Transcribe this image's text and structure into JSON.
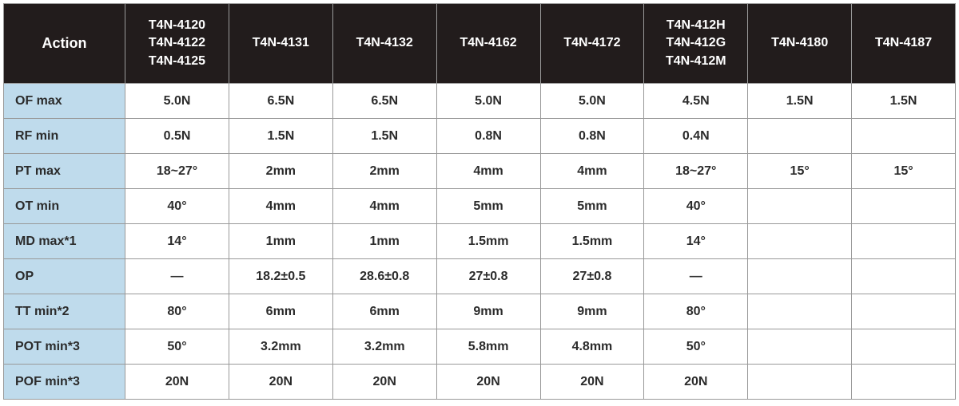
{
  "table": {
    "type": "table",
    "background_color": "#ffffff",
    "header_bg": "#221c1c",
    "header_color": "#ffffff",
    "rowlabel_bg": "#bfdbec",
    "border_color": "#999999",
    "text_color": "#2b2b2b",
    "action_label": "Action",
    "model_headers": [
      "T4N-4120\nT4N-4122\nT4N-4125",
      "T4N-4131",
      "T4N-4132",
      "T4N-4162",
      "T4N-4172",
      "T4N-412H\nT4N-412G\nT4N-412M",
      "T4N-4180",
      "T4N-4187"
    ],
    "rows": [
      {
        "label": "OF max",
        "cells": [
          "5.0N",
          "6.5N",
          "6.5N",
          "5.0N",
          "5.0N",
          "4.5N",
          "1.5N",
          "1.5N"
        ]
      },
      {
        "label": "RF min",
        "cells": [
          "0.5N",
          "1.5N",
          "1.5N",
          "0.8N",
          "0.8N",
          "0.4N",
          "",
          ""
        ]
      },
      {
        "label": "PT max",
        "cells": [
          "18~27°",
          "2mm",
          "2mm",
          "4mm",
          "4mm",
          "18~27°",
          "15°",
          "15°"
        ]
      },
      {
        "label": "OT min",
        "cells": [
          "40°",
          "4mm",
          "4mm",
          "5mm",
          "5mm",
          "40°",
          "",
          ""
        ]
      },
      {
        "label": "MD max*1",
        "cells": [
          "14°",
          "1mm",
          "1mm",
          "1.5mm",
          "1.5mm",
          "14°",
          "",
          ""
        ]
      },
      {
        "label": "OP",
        "cells": [
          "—",
          "18.2±0.5",
          "28.6±0.8",
          "27±0.8",
          "27±0.8",
          "—",
          "",
          ""
        ]
      },
      {
        "label": "TT min*2",
        "cells": [
          "80°",
          "6mm",
          "6mm",
          "9mm",
          "9mm",
          "80°",
          "",
          ""
        ]
      },
      {
        "label": "POT min*3",
        "cells": [
          "50°",
          "3.2mm",
          "3.2mm",
          "5.8mm",
          "4.8mm",
          "50°",
          "",
          ""
        ]
      },
      {
        "label": "POF min*3",
        "cells": [
          "20N",
          "20N",
          "20N",
          "20N",
          "20N",
          "20N",
          "",
          ""
        ]
      }
    ]
  }
}
